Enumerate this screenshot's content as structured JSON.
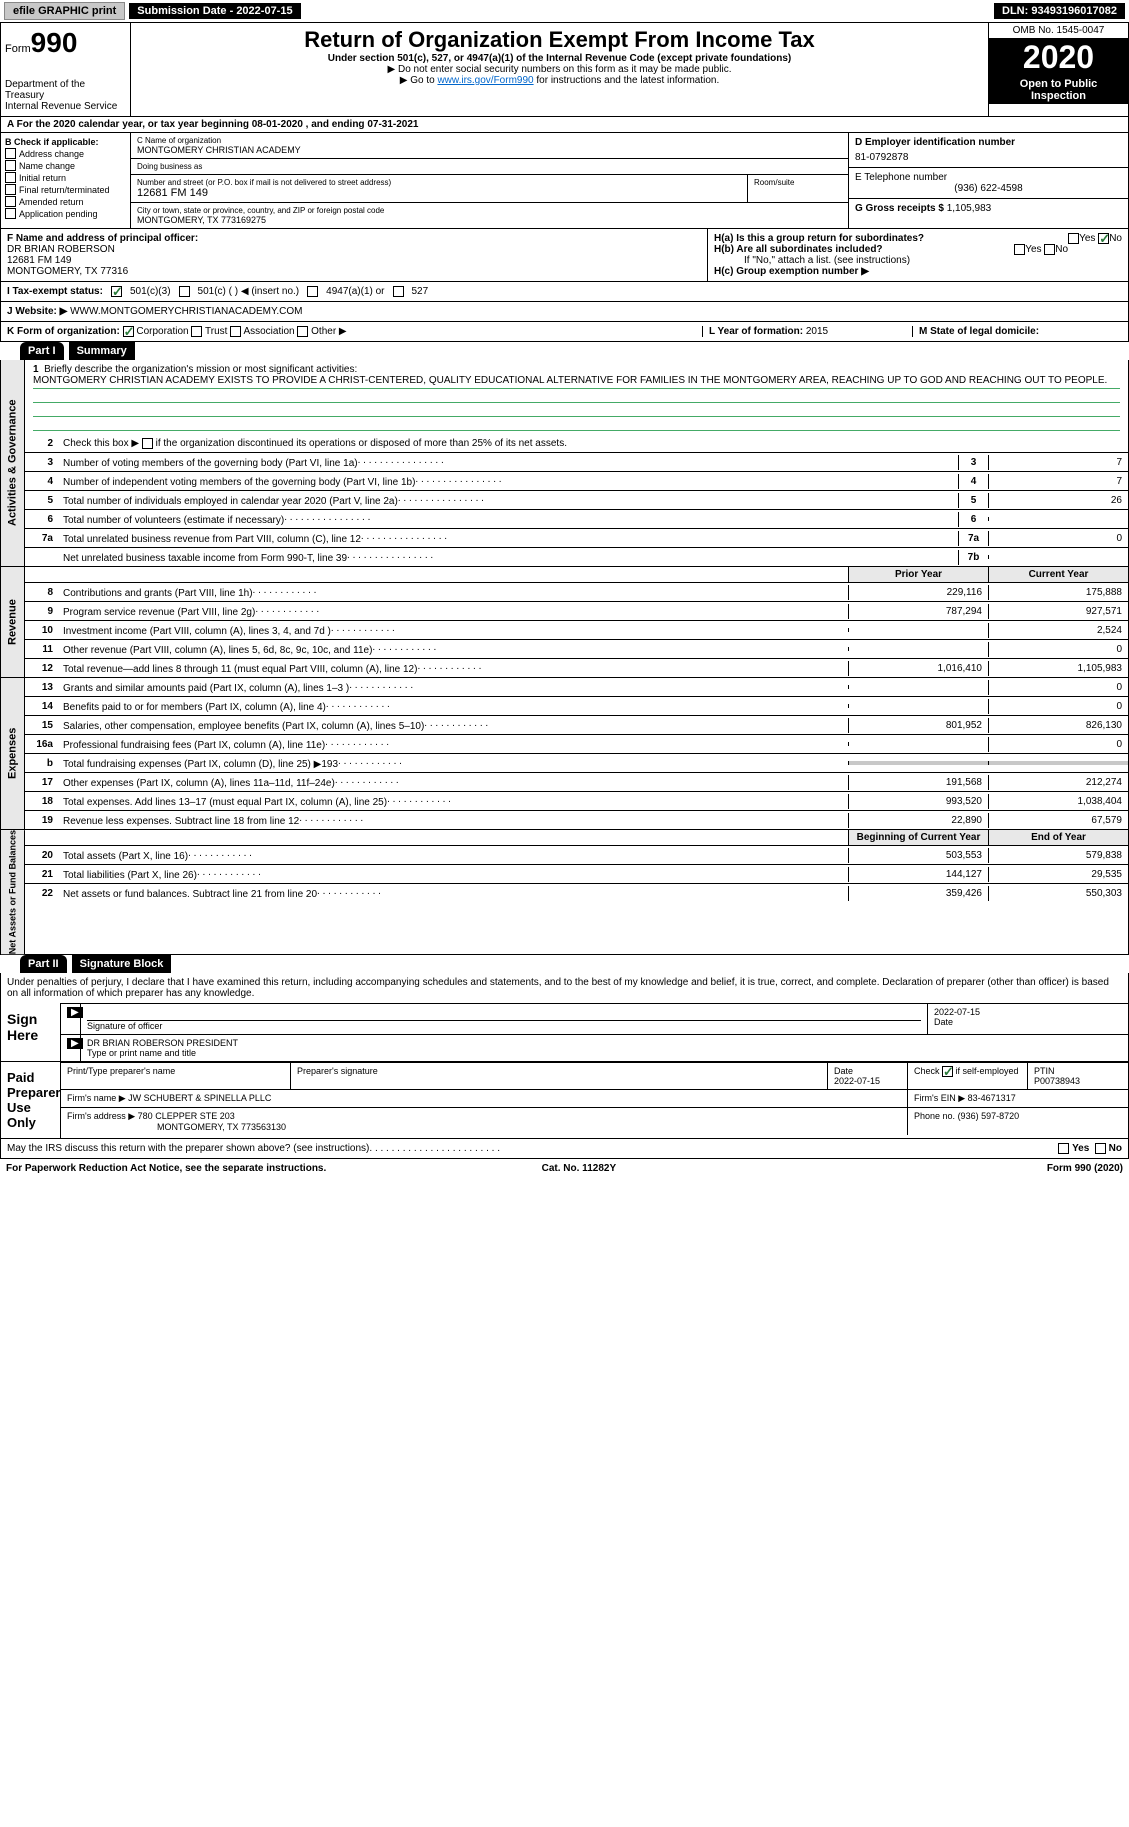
{
  "topbar": {
    "efile": "efile GRAPHIC print",
    "submission": "Submission Date - 2022-07-15",
    "dln": "DLN: 93493196017082"
  },
  "header": {
    "form_prefix": "Form",
    "form_num": "990",
    "dept": "Department of the Treasury\nInternal Revenue Service",
    "title": "Return of Organization Exempt From Income Tax",
    "subtitle": "Under section 501(c), 527, or 4947(a)(1) of the Internal Revenue Code (except private foundations)",
    "note1": "▶ Do not enter social security numbers on this form as it may be made public.",
    "note2_pre": "▶ Go to ",
    "note2_link": "www.irs.gov/Form990",
    "note2_post": " for instructions and the latest information.",
    "omb": "OMB No. 1545-0047",
    "year": "2020",
    "open": "Open to Public Inspection"
  },
  "tax_year_row": "A For the 2020 calendar year, or tax year beginning 08-01-2020    , and ending 07-31-2021",
  "section_b": {
    "label": "B Check if applicable:",
    "opts": [
      "Address change",
      "Name change",
      "Initial return",
      "Final return/terminated",
      "Amended return",
      "Application pending"
    ]
  },
  "section_c": {
    "name_label": "C Name of organization",
    "name": "MONTGOMERY CHRISTIAN ACADEMY",
    "dba_label": "Doing business as",
    "dba": "",
    "addr_label": "Number and street (or P.O. box if mail is not delivered to street address)",
    "room_label": "Room/suite",
    "addr": "12681 FM 149",
    "city_label": "City or town, state or province, country, and ZIP or foreign postal code",
    "city": "MONTGOMERY, TX  773169275"
  },
  "section_d": {
    "ein_label": "D Employer identification number",
    "ein": "81-0792878",
    "phone_label": "E Telephone number",
    "phone": "(936) 622-4598",
    "gross_label": "G Gross receipts $",
    "gross": "1,105,983"
  },
  "section_f": {
    "label": "F Name and address of principal officer:",
    "name": "DR BRIAN ROBERSON",
    "addr1": "12681 FM 149",
    "addr2": "MONTGOMERY, TX  77316"
  },
  "section_h": {
    "ha": "H(a)  Is this a group return for subordinates?",
    "hb": "H(b)  Are all subordinates included?",
    "hb_note": "If \"No,\" attach a list. (see instructions)",
    "hc": "H(c)  Group exemption number ▶",
    "yes": "Yes",
    "no": "No"
  },
  "row_i": {
    "label": "I   Tax-exempt status:",
    "o1": "501(c)(3)",
    "o2": "501(c) (  ) ◀ (insert no.)",
    "o3": "4947(a)(1) or",
    "o4": "527"
  },
  "row_j": {
    "label": "J   Website: ▶",
    "value": "WWW.MONTGOMERYCHRISTIANACADEMY.COM"
  },
  "row_k": {
    "label": "K Form of organization:",
    "opts": [
      "Corporation",
      "Trust",
      "Association",
      "Other ▶"
    ],
    "l_label": "L Year of formation:",
    "l_val": "2015",
    "m_label": "M State of legal domicile:",
    "m_val": ""
  },
  "part1": {
    "hdr": "Part I",
    "title": "Summary",
    "q1_label": "1",
    "q1_text": "Briefly describe the organization's mission or most significant activities:",
    "mission": "MONTGOMERY CHRISTIAN ACADEMY EXISTS TO PROVIDE A CHRIST-CENTERED, QUALITY EDUCATIONAL ALTERNATIVE FOR FAMILIES IN THE MONTGOMERY AREA, REACHING UP TO GOD AND REACHING OUT TO PEOPLE.",
    "q2": "Check this box ▶     if the organization discontinued its operations or disposed of more than 25% of its net assets.",
    "side1": "Activities & Governance",
    "side2": "Revenue",
    "side3": "Expenses",
    "side4": "Net Assets or Fund Balances",
    "col_prior": "Prior Year",
    "col_current": "Current Year",
    "col_begin": "Beginning of Current Year",
    "col_end": "End of Year",
    "lines_gov": [
      {
        "n": "3",
        "t": "Number of voting members of the governing body (Part VI, line 1a)",
        "b": "3",
        "v": "7"
      },
      {
        "n": "4",
        "t": "Number of independent voting members of the governing body (Part VI, line 1b)",
        "b": "4",
        "v": "7"
      },
      {
        "n": "5",
        "t": "Total number of individuals employed in calendar year 2020 (Part V, line 2a)",
        "b": "5",
        "v": "26"
      },
      {
        "n": "6",
        "t": "Total number of volunteers (estimate if necessary)",
        "b": "6",
        "v": ""
      },
      {
        "n": "7a",
        "t": "Total unrelated business revenue from Part VIII, column (C), line 12",
        "b": "7a",
        "v": "0"
      },
      {
        "n": "",
        "t": "Net unrelated business taxable income from Form 990-T, line 39",
        "b": "7b",
        "v": ""
      }
    ],
    "lines_rev": [
      {
        "n": "8",
        "t": "Contributions and grants (Part VIII, line 1h)",
        "p": "229,116",
        "c": "175,888"
      },
      {
        "n": "9",
        "t": "Program service revenue (Part VIII, line 2g)",
        "p": "787,294",
        "c": "927,571"
      },
      {
        "n": "10",
        "t": "Investment income (Part VIII, column (A), lines 3, 4, and 7d )",
        "p": "",
        "c": "2,524"
      },
      {
        "n": "11",
        "t": "Other revenue (Part VIII, column (A), lines 5, 6d, 8c, 9c, 10c, and 11e)",
        "p": "",
        "c": "0"
      },
      {
        "n": "12",
        "t": "Total revenue—add lines 8 through 11 (must equal Part VIII, column (A), line 12)",
        "p": "1,016,410",
        "c": "1,105,983"
      }
    ],
    "lines_exp": [
      {
        "n": "13",
        "t": "Grants and similar amounts paid (Part IX, column (A), lines 1–3 )",
        "p": "",
        "c": "0"
      },
      {
        "n": "14",
        "t": "Benefits paid to or for members (Part IX, column (A), line 4)",
        "p": "",
        "c": "0"
      },
      {
        "n": "15",
        "t": "Salaries, other compensation, employee benefits (Part IX, column (A), lines 5–10)",
        "p": "801,952",
        "c": "826,130"
      },
      {
        "n": "16a",
        "t": "Professional fundraising fees (Part IX, column (A), line 11e)",
        "p": "",
        "c": "0"
      },
      {
        "n": "b",
        "t": "Total fundraising expenses (Part IX, column (D), line 25) ▶193",
        "p": "SHADE",
        "c": "SHADE"
      },
      {
        "n": "17",
        "t": "Other expenses (Part IX, column (A), lines 11a–11d, 11f–24e)",
        "p": "191,568",
        "c": "212,274"
      },
      {
        "n": "18",
        "t": "Total expenses. Add lines 13–17 (must equal Part IX, column (A), line 25)",
        "p": "993,520",
        "c": "1,038,404"
      },
      {
        "n": "19",
        "t": "Revenue less expenses. Subtract line 18 from line 12",
        "p": "22,890",
        "c": "67,579"
      }
    ],
    "lines_net": [
      {
        "n": "20",
        "t": "Total assets (Part X, line 16)",
        "p": "503,553",
        "c": "579,838"
      },
      {
        "n": "21",
        "t": "Total liabilities (Part X, line 26)",
        "p": "144,127",
        "c": "29,535"
      },
      {
        "n": "22",
        "t": "Net assets or fund balances. Subtract line 21 from line 20",
        "p": "359,426",
        "c": "550,303"
      }
    ]
  },
  "part2": {
    "hdr": "Part II",
    "title": "Signature Block",
    "decl": "Under penalties of perjury, I declare that I have examined this return, including accompanying schedules and statements, and to the best of my knowledge and belief, it is true, correct, and complete. Declaration of preparer (other than officer) is based on all information of which preparer has any knowledge.",
    "sign_here": "Sign Here",
    "sig_officer": "Signature of officer",
    "sig_date": "Date",
    "sig_date_val": "2022-07-15",
    "officer_name": "DR BRIAN ROBERSON  PRESIDENT",
    "officer_label": "Type or print name and title",
    "paid": "Paid Preparer Use Only",
    "prep_name_label": "Print/Type preparer's name",
    "prep_sig_label": "Preparer's signature",
    "prep_date_label": "Date",
    "prep_date": "2022-07-15",
    "prep_self": "Check        if self-employed",
    "ptin_label": "PTIN",
    "ptin": "P00738943",
    "firm_name_label": "Firm's name    ▶",
    "firm_name": "JW SCHUBERT & SPINELLA PLLC",
    "firm_ein_label": "Firm's EIN ▶",
    "firm_ein": "83-4671317",
    "firm_addr_label": "Firm's address ▶",
    "firm_addr": "780 CLEPPER STE 203",
    "firm_city": "MONTGOMERY, TX  773563130",
    "firm_phone_label": "Phone no.",
    "firm_phone": "(936) 597-8720",
    "may_irs": "May the IRS discuss this return with the preparer shown above? (see instructions)",
    "yes": "Yes",
    "no": "No"
  },
  "footer": {
    "left": "For Paperwork Reduction Act Notice, see the separate instructions.",
    "mid": "Cat. No. 11282Y",
    "right": "Form 990 (2020)"
  },
  "colors": {
    "link": "#0066cc",
    "check": "#2a7a3a",
    "shade": "#c8c8c8",
    "side_bg": "#e8e8e8"
  }
}
